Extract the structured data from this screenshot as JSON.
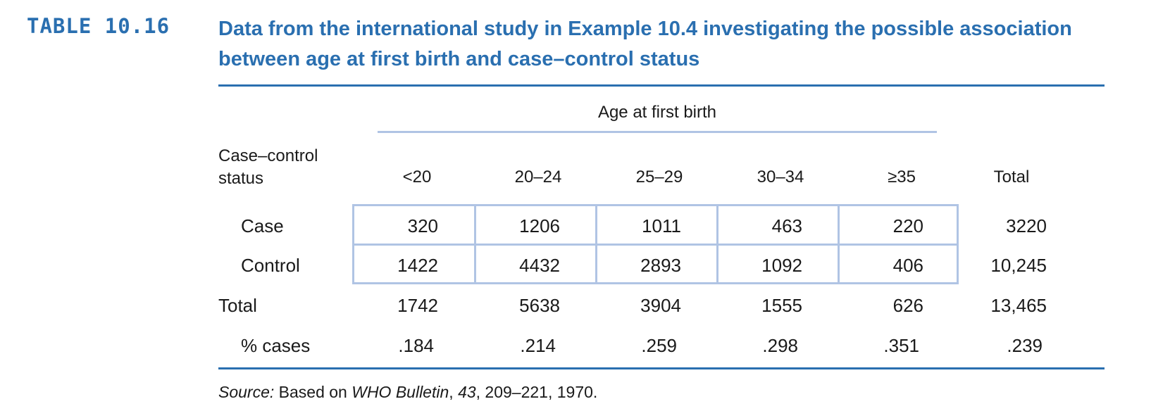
{
  "table_label": "TABLE 10.16",
  "title": "Data from the international study in Example 10.4 investigating the possible association between age at first birth and case–control status",
  "spanner": "Age at first birth",
  "stub_header_line1": "Case–control",
  "stub_header_line2": "status",
  "columns": [
    "<20",
    "20–24",
    "25–29",
    "30–34",
    "≥35",
    "Total"
  ],
  "rows": [
    {
      "label": "Case",
      "values": [
        "320",
        "1206",
        "1011",
        "463",
        "220",
        "3220"
      ]
    },
    {
      "label": "Control",
      "values": [
        "1422",
        "4432",
        "2893",
        "1092",
        "406",
        "10,245"
      ]
    },
    {
      "label": "Total",
      "values": [
        "1742",
        "5638",
        "3904",
        "1555",
        "626",
        "13,465"
      ]
    },
    {
      "label": "% cases",
      "values": [
        ".184",
        ".214",
        ".259",
        ".298",
        ".351",
        ".239"
      ]
    }
  ],
  "source": {
    "prefix": "Source:",
    "text1": " Based on ",
    "journal": "WHO Bulletin",
    "sep": ", ",
    "volume": "43",
    "text2": ", 209–221, 1970."
  },
  "colors": {
    "accent": "#2a6fb0",
    "box_border": "#b0c4e4"
  }
}
